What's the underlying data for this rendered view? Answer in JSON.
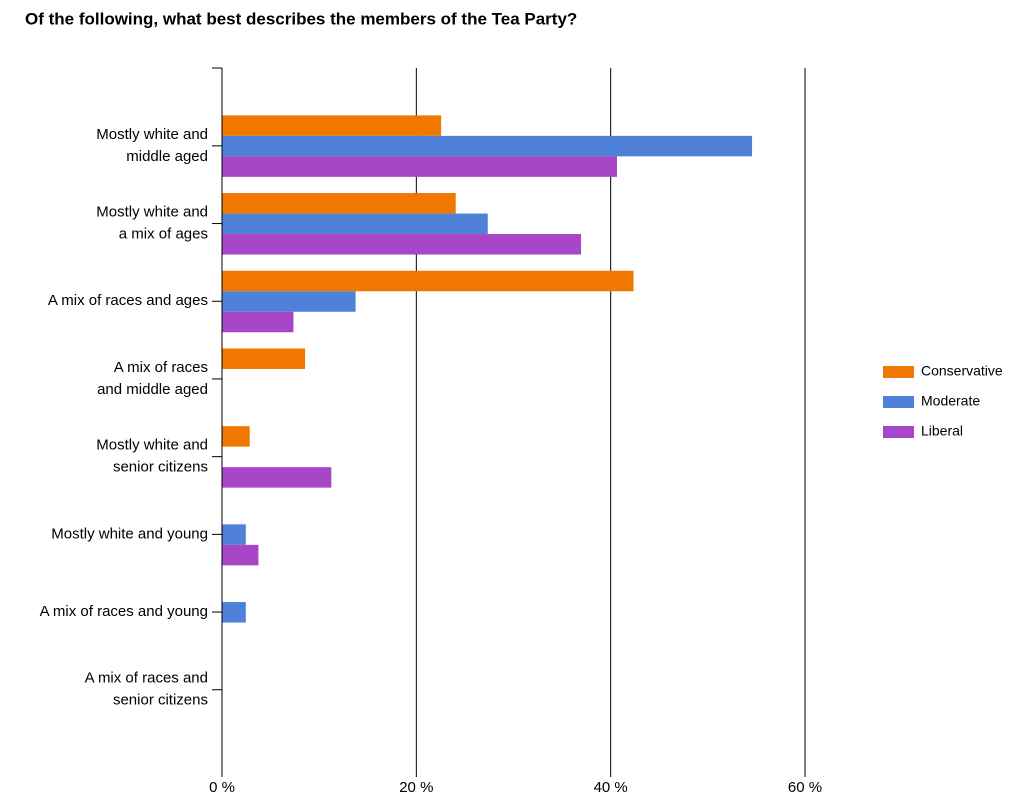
{
  "chart_data": {
    "type": "hbar",
    "title": "Of the following, what best describes the members of the Tea Party?",
    "categories": [
      [
        "Mostly white and",
        "middle aged"
      ],
      [
        "Mostly white and",
        "a mix of ages"
      ],
      [
        "A mix of races and ages"
      ],
      [
        "A mix of races",
        "and middle aged"
      ],
      [
        "Mostly white and",
        "senior citizens"
      ],
      [
        "Mostly white and young"
      ],
      [
        "A mix of races and young"
      ],
      [
        "A mix of races and",
        "senior citizens"
      ]
    ],
    "series": [
      {
        "name": "Conservative",
        "color": "#f07800",
        "values": [
          22.5,
          24,
          42.3,
          8.5,
          2.8,
          0,
          0,
          0
        ]
      },
      {
        "name": "Moderate",
        "color": "#4f81d9",
        "values": [
          54.5,
          27.3,
          13.7,
          0,
          0,
          2.4,
          2.4,
          0
        ]
      },
      {
        "name": "Liberal",
        "color": "#a846c8",
        "values": [
          40.6,
          36.9,
          7.3,
          0,
          11.2,
          3.7,
          0,
          0
        ]
      }
    ],
    "xlim": [
      0,
      60
    ],
    "xticks": [
      {
        "value": 0,
        "label": "0 %"
      },
      {
        "value": 20,
        "label": "20 %"
      },
      {
        "value": 40,
        "label": "40 %"
      },
      {
        "value": 60,
        "label": "60 %"
      }
    ],
    "grid": true,
    "legend": "right"
  }
}
